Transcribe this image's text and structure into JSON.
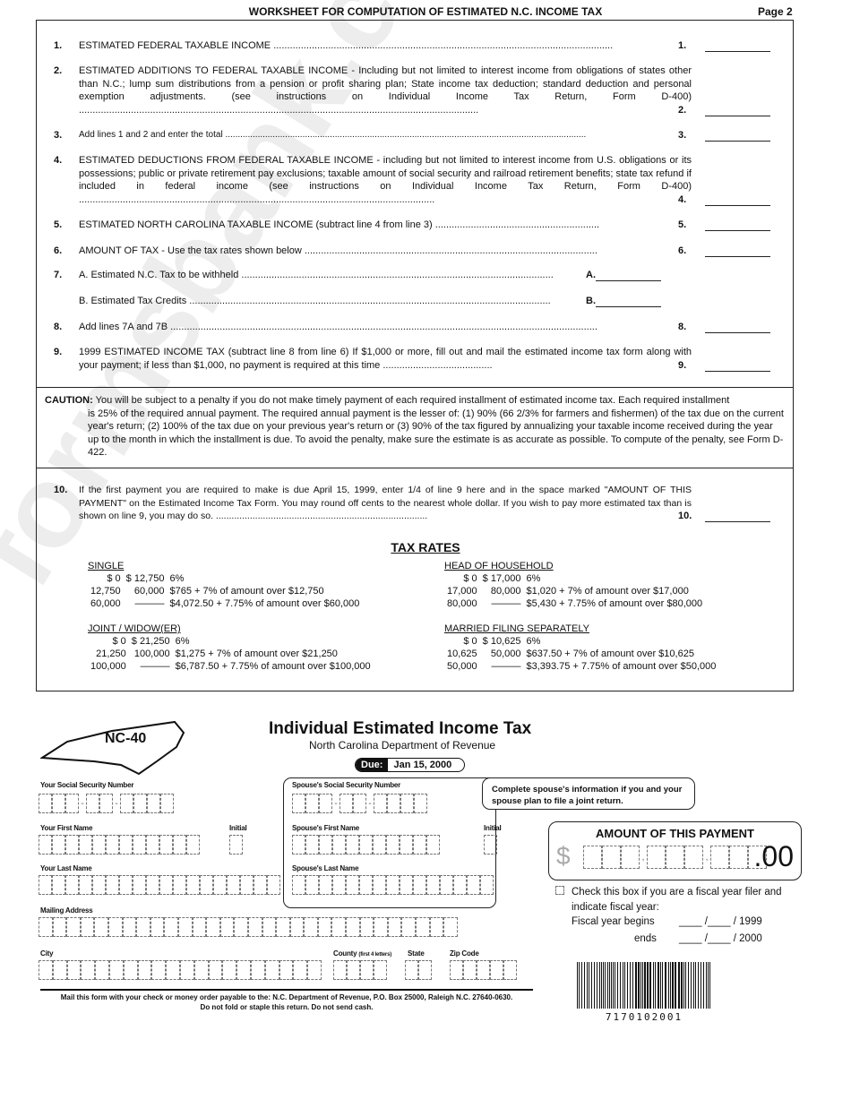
{
  "header": {
    "title": "WORKSHEET FOR COMPUTATION OF ESTIMATED N.C. INCOME TAX",
    "page": "Page 2"
  },
  "lines": [
    {
      "num": "1.",
      "text": "ESTIMATED FEDERAL TAXABLE INCOME ............................................................................................................................",
      "ref": "1."
    },
    {
      "num": "2.",
      "text": "ESTIMATED ADDITIONS TO FEDERAL TAXABLE INCOME - Including but not limited to interest income from obligations of states other than N.C.; lump sum distributions from a pension or profit sharing plan; State income tax deduction; standard deduction and personal exemption adjustments. (see instructions on Individual Income Tax Return, Form D-400) ..................................................................................................................................................",
      "ref": "2."
    },
    {
      "num": "3.",
      "text": "Add lines 1 and 2 and enter the total .................................................................................................................................................",
      "ref": "3."
    },
    {
      "num": "4.",
      "text": "ESTIMATED DEDUCTIONS FROM FEDERAL TAXABLE INCOME - including but not limited to interest income from U.S. obligations or its possessions; public or private retirement pay exclusions; taxable amount of social security and railroad retirement benefits; state tax refund if included in federal income (see instructions on Individual Income Tax Return, Form D-400) ..................................................................................................................................",
      "ref": "4."
    },
    {
      "num": "5.",
      "text": "ESTIMATED NORTH CAROLINA TAXABLE INCOME (subtract line 4 from line 3) ............................................................",
      "ref": "5."
    },
    {
      "num": "6.",
      "text": "AMOUNT OF TAX - Use the tax rates shown below ...........................................................................................................",
      "ref": "6."
    },
    {
      "num": "7.",
      "text": "A. Estimated N.C. Tax to be withheld ..................................................................................................................",
      "ref": "A."
    },
    {
      "num": "",
      "text": "B. Estimated Tax Credits ....................................................................................................................................",
      "ref": "B."
    },
    {
      "num": "8.",
      "text": "Add lines 7A and 7B ............................................................................................................................................................",
      "ref": "8."
    },
    {
      "num": "9.",
      "text": "1999 ESTIMATED INCOME TAX (subtract line 8 from line 6) If $1,000 or more, fill out and mail the estimated income tax form along with your payment; if less than $1,000, no payment is required at this time ........................................",
      "ref": "9."
    }
  ],
  "caution": {
    "label": "CAUTION:",
    "first": "You will be subject to a penalty if you do not make timely payment of each required installment of estimated income tax. Each required installment",
    "rest": "is 25% of the required annual payment. The required annual payment is the lesser of: (1) 90% (66 2/3% for farmers and fishermen) of the tax due on the current year's return; (2) 100% of the tax due on your previous year's return or (3) 90% of the tax figured by annualizing your taxable income received during the year up to the month in which the installment is due. To avoid the penalty, make sure the estimate is as accurate as possible. To compute of the penalty, see Form D-422."
  },
  "line10": {
    "num": "10.",
    "text": "If the first payment you are required to make is due April 15, 1999, enter 1/4 of line 9 here and in the space marked \"AMOUNT OF THIS PAYMENT\" on the Estimated Income Tax Form. You may round off cents to the nearest whole dollar. If you wish to pay more estimated tax than is shown on line 9, you may do so. .................................................................................",
    "ref": "10."
  },
  "tax_rates": {
    "title": "TAX RATES",
    "tables": [
      {
        "heading": "Single",
        "rows": [
          [
            "$    0",
            "$  12,750",
            "6%"
          ],
          [
            "12,750",
            "60,000",
            "$765 + 7% of amount over $12,750"
          ],
          [
            "60,000",
            "———",
            "$4,072.50 + 7.75% of amount over $60,000"
          ]
        ]
      },
      {
        "heading": "Head of Household",
        "rows": [
          [
            "$    0",
            "$  17,000",
            "6%"
          ],
          [
            "17,000",
            "80,000",
            "$1,020 + 7% of amount over $17,000"
          ],
          [
            "80,000",
            "———",
            "$5,430 + 7.75% of amount over $80,000"
          ]
        ]
      },
      {
        "heading": "Joint / Widow(er)",
        "rows": [
          [
            "$    0",
            "$  21,250",
            "6%"
          ],
          [
            "21,250",
            "100,000",
            "$1,275 + 7% of amount over $21,250"
          ],
          [
            "100,000",
            "———",
            "$6,787.50 + 7.75% of amount over $100,000"
          ]
        ]
      },
      {
        "heading": "Married Filing Separately",
        "rows": [
          [
            "$    0",
            "$  10,625",
            "6%"
          ],
          [
            "10,625",
            "50,000",
            "$637.50 + 7% of amount over $10,625"
          ],
          [
            "50,000",
            "———",
            "$3,393.75 + 7.75% of amount over $50,000"
          ]
        ]
      }
    ]
  },
  "form": {
    "logo": "NC-40",
    "title": "Individual Estimated Income Tax",
    "subtitle": "North Carolina Department of Revenue",
    "due_label": "Due:",
    "due_date": "Jan 15, 2000",
    "fields": {
      "ssn": "Your Social Security Number",
      "first": "Your First Name",
      "initial": "Initial",
      "last": "Your Last Name",
      "sp_ssn": "Spouse's Social Security Number",
      "sp_first": "Spouse's First Name",
      "sp_initial": "Initial",
      "sp_last": "Spouse's Last Name",
      "address": "Mailing Address",
      "city": "City",
      "county": "County",
      "county_note": "(first 4 letters)",
      "state": "State",
      "zip": "Zip Code"
    },
    "spouse_note": "Complete spouse's information if you and your spouse plan to file a joint return.",
    "amount": {
      "title": "AMOUNT OF THIS PAYMENT",
      "dollar": "$",
      "cents": ".00"
    },
    "fiscal": {
      "check_text": "Check this box if you are a fiscal year filer and indicate fiscal year:",
      "begins": "Fiscal year begins",
      "begins_year": "/ 1999",
      "ends": "ends",
      "ends_year": "/ 2000"
    },
    "mail_line1": "Mail this form with your check or money order payable to the:  N.C. Department of Revenue, P.O. Box 25000, Raleigh N.C. 27640-0630.",
    "mail_line2": "Do not fold or staple this return. Do not send cash.",
    "barcode": "7170102001"
  }
}
